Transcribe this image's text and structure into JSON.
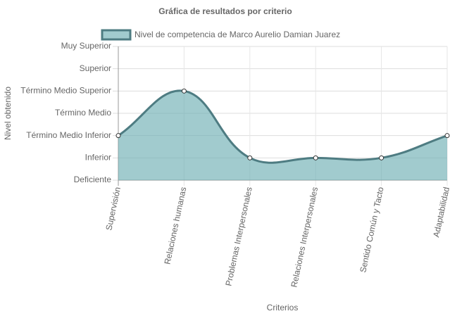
{
  "chart_data": {
    "type": "line",
    "title": "Gráfica de resultados por criterio",
    "x_label": "Criterios",
    "y_label": "Nivel obtenido",
    "categories": [
      "Supervisión",
      "Relaciones humanas",
      "Problemas Interpersonales",
      "Relaciones Interpersonales",
      "Sentido Común y Tacto",
      "Adaptabilidad"
    ],
    "series": [
      {
        "name": "Nivel de competencia de Marco Aurelio Damian Juarez",
        "color": "#4e7c82",
        "fill_color": "rgba(110,175,180,0.65)",
        "values": [
          2,
          4,
          1,
          1,
          1,
          2
        ]
      }
    ],
    "ylim": [
      0,
      6
    ],
    "yticks": [
      {
        "value": 0,
        "label": "Deficiente"
      },
      {
        "value": 1,
        "label": "Inferior"
      },
      {
        "value": 2,
        "label": "Término Medio Inferior"
      },
      {
        "value": 3,
        "label": "Término Medio"
      },
      {
        "value": 4,
        "label": "Término Medio Superior"
      },
      {
        "value": 5,
        "label": "Superior"
      },
      {
        "value": 6,
        "label": "Muy Superior"
      }
    ],
    "grid": true,
    "fill": true,
    "legend": "top"
  }
}
